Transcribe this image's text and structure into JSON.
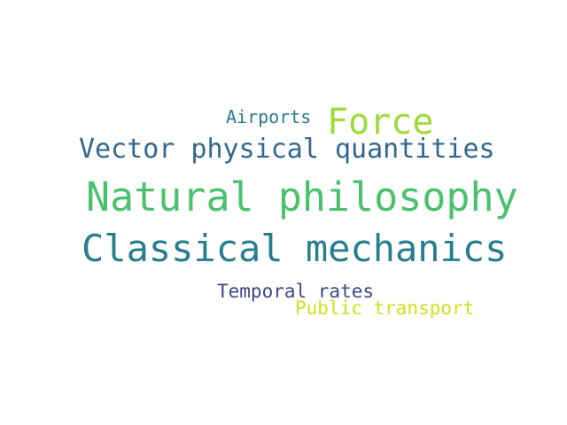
{
  "word_cloud": {
    "words": [
      {
        "id": "airports",
        "text": "Airports",
        "color": "#2a788e"
      },
      {
        "id": "force",
        "text": "Force",
        "color": "#a0da39"
      },
      {
        "id": "vector",
        "text": "Vector physical quantities",
        "color": "#31688e"
      },
      {
        "id": "natural",
        "text": "Natural philosophy",
        "color": "#4ac16d"
      },
      {
        "id": "classical",
        "text": "Classical mechanics",
        "color": "#287d8e"
      },
      {
        "id": "temporal",
        "text": "Temporal rates",
        "color": "#414487"
      },
      {
        "id": "public",
        "text": "Public transport",
        "color": "#d0e11c"
      }
    ]
  }
}
